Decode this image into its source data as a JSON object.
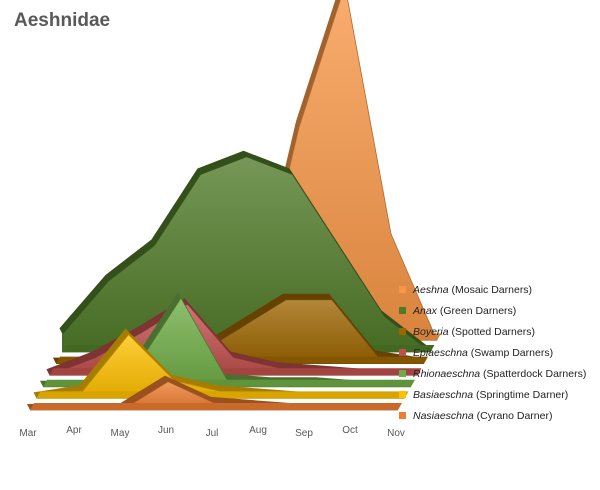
{
  "chart_data": {
    "type": "area",
    "title": "Aeshnidae",
    "xlabel": "",
    "ylabel": "",
    "categories": [
      "Mar",
      "Apr",
      "May",
      "Jun",
      "Jul",
      "Aug",
      "Sep",
      "Oct",
      "Nov"
    ],
    "legend_position": "right",
    "grid": false,
    "series": [
      {
        "genus": "Aeshna",
        "common": "(Mosaic Darners)",
        "color": "#f79646",
        "values": [
          0,
          0,
          0,
          0,
          0.05,
          0.6,
          1.0,
          0.3,
          0
        ]
      },
      {
        "genus": "Anax",
        "common": "(Green Darners)",
        "color": "#4f7a28",
        "values": [
          0.05,
          0.2,
          0.3,
          0.5,
          0.55,
          0.5,
          0.3,
          0.1,
          0
        ]
      },
      {
        "genus": "Boyeria",
        "common": "(Spotted Darners)",
        "color": "#9c6500",
        "values": [
          0,
          0,
          0,
          0.02,
          0.1,
          0.18,
          0.18,
          0.02,
          0
        ]
      },
      {
        "genus": "Epiaeschna",
        "common": "(Swamp Darners)",
        "color": "#c0504d",
        "values": [
          0,
          0.05,
          0.12,
          0.2,
          0.05,
          0.02,
          0.01,
          0,
          0
        ]
      },
      {
        "genus": "Rhionaeschna",
        "common": "(Spatterdock Darners)",
        "color": "#70ad47",
        "values": [
          0,
          0,
          0.05,
          0.25,
          0.02,
          0.01,
          0.01,
          0,
          0
        ]
      },
      {
        "genus": "Basiaeschna",
        "common": "(Springtime Darner)",
        "color": "#ffc000",
        "values": [
          0,
          0.02,
          0.18,
          0.05,
          0.02,
          0.01,
          0,
          0,
          0
        ]
      },
      {
        "genus": "Nasiaeschna",
        "common": "(Cyrano Darner)",
        "color": "#ed7d31",
        "values": [
          0,
          0,
          0,
          0.08,
          0.02,
          0.01,
          0,
          0,
          0
        ]
      }
    ]
  }
}
